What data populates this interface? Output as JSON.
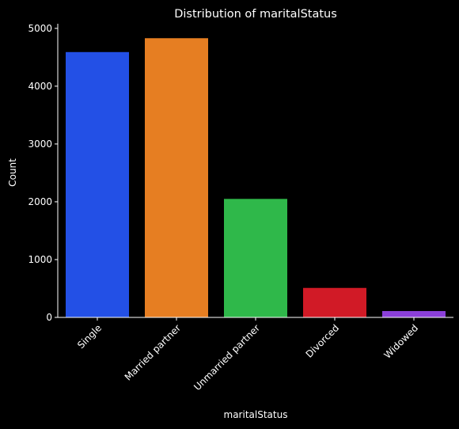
{
  "chart_data": {
    "type": "bar",
    "title": "Distribution of maritalStatus",
    "xlabel": "maritalStatus",
    "ylabel": "Count",
    "categories": [
      "Single",
      "Married partner",
      "Unmarried partner",
      "Divorced",
      "Widowed"
    ],
    "values": [
      4590,
      4830,
      2050,
      510,
      110
    ],
    "colors": [
      "#2350e6",
      "#e67e22",
      "#2fb84a",
      "#d11a26",
      "#8b3fd9"
    ],
    "ylim": [
      0,
      5080
    ],
    "yticks": [
      0,
      1000,
      2000,
      3000,
      4000,
      5000
    ],
    "grid": false,
    "background": "#000000",
    "foreground": "#ffffff"
  }
}
